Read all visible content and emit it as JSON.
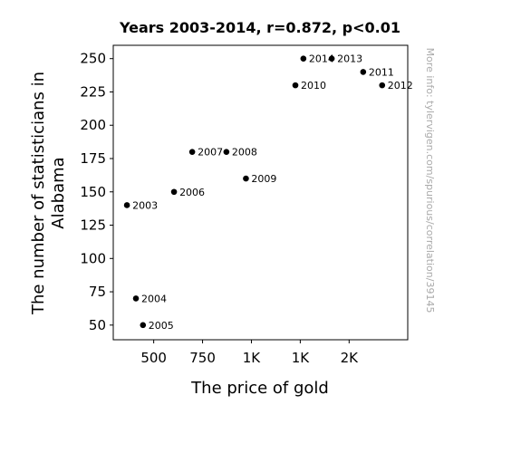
{
  "chart_data": {
    "type": "scatter",
    "title": "Years 2003-2014, r=0.872, p<0.01",
    "xlabel": "The price of gold",
    "ylabel_lines": [
      "The number of statisticians in",
      "Alabama"
    ],
    "xlim": [
      293,
      1800
    ],
    "ylim": [
      39,
      260
    ],
    "x_ticks": [
      {
        "value": 500,
        "label": "500"
      },
      {
        "value": 750,
        "label": "750"
      },
      {
        "value": 1000,
        "label": "1K"
      },
      {
        "value": 1250,
        "label": "1K"
      },
      {
        "value": 1500,
        "label": "2K"
      }
    ],
    "y_ticks": [
      50,
      75,
      100,
      125,
      150,
      175,
      200,
      225,
      250
    ],
    "points": [
      {
        "label": "2003",
        "x": 363,
        "y": 140
      },
      {
        "label": "2004",
        "x": 409,
        "y": 70
      },
      {
        "label": "2005",
        "x": 445,
        "y": 50
      },
      {
        "label": "2006",
        "x": 604,
        "y": 150
      },
      {
        "label": "2007",
        "x": 697,
        "y": 180
      },
      {
        "label": "2008",
        "x": 872,
        "y": 180
      },
      {
        "label": "2009",
        "x": 972,
        "y": 160
      },
      {
        "label": "2010",
        "x": 1225,
        "y": 230
      },
      {
        "label": "2014",
        "x": 1266,
        "y": 250
      },
      {
        "label": "2013",
        "x": 1411,
        "y": 250
      },
      {
        "label": "2011",
        "x": 1572,
        "y": 240
      },
      {
        "label": "2012",
        "x": 1669,
        "y": 230
      }
    ],
    "marker_color": "#000000",
    "grid": false
  },
  "watermark": "More info: tylervigen.com/spurious/correlation/39145"
}
